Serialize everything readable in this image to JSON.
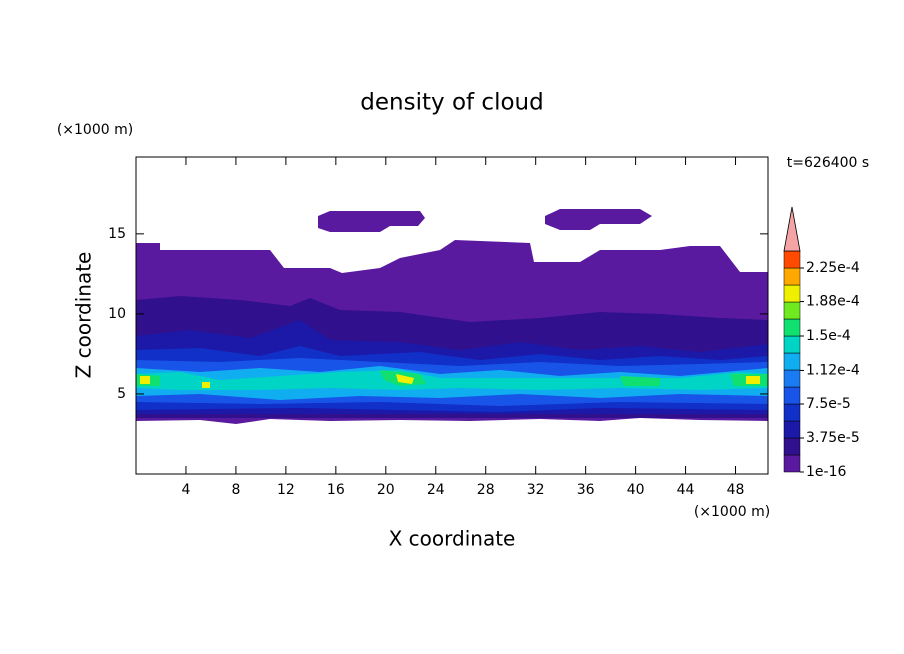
{
  "chart_data": {
    "type": "contour",
    "title": "density of cloud",
    "xlabel": "X coordinate",
    "ylabel": "Z coordinate",
    "xunit": "(×1000 m)",
    "yunit": "(×1000 m)",
    "time_label": "t=626400 s",
    "xlim": [
      0,
      50.6
    ],
    "ylim": [
      0,
      19.8
    ],
    "xticks": [
      4,
      8,
      12,
      16,
      20,
      24,
      28,
      32,
      36,
      40,
      44,
      48
    ],
    "yticks": [
      5,
      10,
      15
    ],
    "colorbar": {
      "extend": "max",
      "extend_color": "#f4a4a4",
      "levels": [
        1e-16,
        1.875e-05,
        3.75e-05,
        5.625e-05,
        7.5e-05,
        9.375e-05,
        0.0001125,
        0.00013125,
        0.00015,
        0.00016875,
        0.0001875,
        0.00020625,
        0.000225,
        0.00024375
      ],
      "colors": [
        "#5a1aa0",
        "#30108c",
        "#1c18a8",
        "#1030c8",
        "#1854e8",
        "#1a7cf4",
        "#10aef0",
        "#00d4c4",
        "#10e070",
        "#70ea20",
        "#eef000",
        "#ffa800",
        "#ff4a00"
      ],
      "ticks": [
        {
          "value": 1e-16,
          "label": "1e-16"
        },
        {
          "value": 3.75e-05,
          "label": "3.75e-5"
        },
        {
          "value": 7.5e-05,
          "label": "7.5e-5"
        },
        {
          "value": 0.000112,
          "label": "1.12e-4"
        },
        {
          "value": 0.00015,
          "label": "1.5e-4"
        },
        {
          "value": 0.000188,
          "label": "1.88e-4"
        },
        {
          "value": 0.000225,
          "label": "2.25e-4"
        }
      ]
    }
  }
}
